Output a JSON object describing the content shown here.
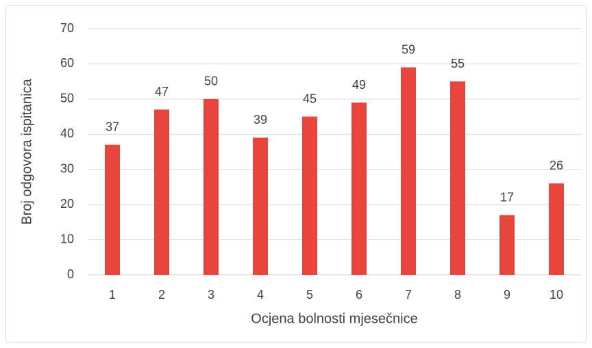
{
  "chart_data": {
    "type": "bar",
    "y_label": "Broj odgovora ispitanica",
    "x_label": "Ocjena bolnosti mjesečnice",
    "categories": [
      "1",
      "2",
      "3",
      "4",
      "5",
      "6",
      "7",
      "8",
      "9",
      "10"
    ],
    "values": [
      37,
      47,
      50,
      39,
      45,
      49,
      59,
      55,
      17,
      26
    ],
    "color": "#e8453c",
    "ylim": [
      0,
      70
    ],
    "yticks": [
      0,
      10,
      20,
      30,
      40,
      50,
      60,
      70
    ],
    "grid": true
  }
}
